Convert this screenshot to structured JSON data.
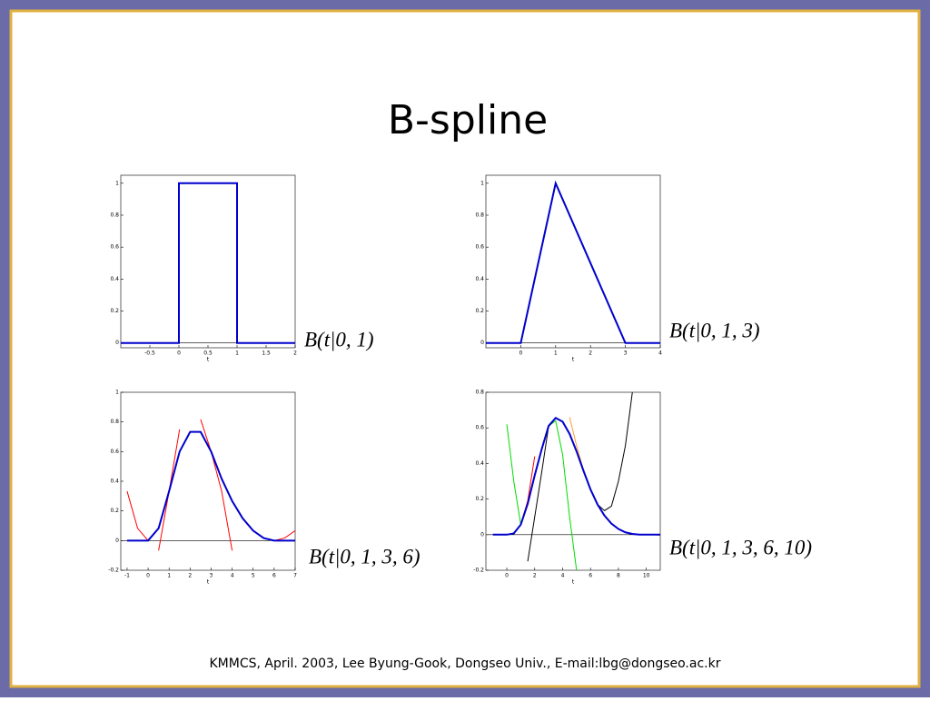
{
  "slide": {
    "title": "B-spline",
    "footer": "KMMCS, April. 2003, Lee  Byung-Gook, Dongseo Univ., E-mail:lbg@dongseo.ac.kr"
  },
  "chart_data": [
    {
      "type": "line",
      "annotation": "B(t|0, 1)",
      "x_label": "t",
      "x": [
        -1,
        0,
        0,
        1,
        1,
        2
      ],
      "series": [
        {
          "color": "#0000cc",
          "values": [
            0,
            0,
            1,
            1,
            0,
            0
          ]
        }
      ],
      "xlim": [
        -1,
        2
      ],
      "xticks": [
        -0.5,
        0,
        0.5,
        1,
        1.5,
        2
      ],
      "ylim": [
        -0.03,
        1.05
      ],
      "yticks": [
        0,
        0.2,
        0.4,
        0.6,
        0.8,
        1
      ]
    },
    {
      "type": "line",
      "annotation": "B(t|0, 1, 3)",
      "x_label": "t",
      "x": [
        -1,
        0,
        1,
        3,
        4
      ],
      "series": [
        {
          "color": "#0000cc",
          "values": [
            0,
            0,
            1,
            0,
            0
          ]
        }
      ],
      "xlim": [
        -1,
        4
      ],
      "xticks": [
        0,
        1,
        2,
        3,
        4
      ],
      "ylim": [
        -0.03,
        1.05
      ],
      "yticks": [
        0,
        0.2,
        0.4,
        0.6,
        0.8,
        1
      ]
    },
    {
      "type": "line",
      "annotation": "B(t|0, 1, 3, 6)",
      "x_label": "t",
      "x": [
        -1,
        -0.5,
        0,
        0.5,
        1,
        1.5,
        2,
        2.5,
        3,
        3.5,
        4,
        4.5,
        5,
        5.5,
        6,
        6.5,
        7
      ],
      "series": [
        {
          "color": "#ff0000",
          "values": [
            0.333,
            0.083,
            0,
            0.083,
            0.333,
            0.75,
            null,
            null,
            null,
            null,
            null,
            null,
            null,
            null,
            null,
            null,
            null
          ]
        },
        {
          "color": "#ff0000",
          "values": [
            null,
            null,
            null,
            -0.067,
            0.333,
            0.6,
            0.733,
            0.733,
            0.6,
            0.333,
            -0.067,
            null,
            null,
            null,
            null,
            null,
            null
          ]
        },
        {
          "color": "#ff0000",
          "values": [
            null,
            null,
            null,
            null,
            null,
            null,
            null,
            0.817,
            0.6,
            0.417,
            0.267,
            0.15,
            0.067,
            0.017,
            0,
            0.017,
            0.067
          ]
        },
        {
          "color": "#0000cc",
          "values": [
            0,
            0,
            0,
            0.083,
            0.333,
            0.6,
            0.733,
            0.733,
            0.6,
            0.417,
            0.267,
            0.15,
            0.067,
            0.017,
            0,
            0,
            0
          ]
        }
      ],
      "xlim": [
        -1.3,
        7
      ],
      "xticks": [
        -1,
        0,
        1,
        2,
        3,
        4,
        5,
        6,
        7
      ],
      "ylim": [
        -0.2,
        1
      ],
      "yticks": [
        -0.2,
        0,
        0.2,
        0.4,
        0.6,
        0.8,
        1
      ]
    },
    {
      "type": "line",
      "annotation": "B(t|0, 1, 3, 6, 10)",
      "x_label": "t",
      "x": [
        -1,
        -0.5,
        0,
        0.5,
        1,
        1.5,
        2,
        2.5,
        3,
        3.5,
        4,
        4.5,
        5,
        5.5,
        6,
        6.5,
        7,
        7.5,
        8,
        8.5,
        9,
        9.5,
        10,
        10.5,
        11
      ],
      "series": [
        {
          "color": "#00dd00",
          "values": [
            null,
            null,
            0.62,
            0.3,
            0.056,
            0.17,
            0.333,
            0.48,
            0.611,
            0.64,
            0.45,
            0.1,
            -0.2,
            null,
            null,
            null,
            null,
            null,
            null,
            null,
            null,
            null,
            null,
            null,
            null
          ]
        },
        {
          "color": "#000000",
          "values": [
            null,
            null,
            null,
            null,
            null,
            -0.15,
            0.1,
            0.35,
            0.611,
            0.656,
            0.635,
            0.566,
            0.468,
            0.358,
            0.254,
            0.17,
            0.135,
            0.16,
            0.3,
            0.5,
            0.8,
            null,
            null,
            null,
            null
          ]
        },
        {
          "color": "#ff0000",
          "values": [
            null,
            null,
            0,
            0.007,
            0.056,
            0.19,
            0.44,
            null,
            null,
            null,
            null,
            null,
            null,
            null,
            null,
            null,
            null,
            null,
            null,
            null,
            null,
            null,
            null,
            null,
            null
          ]
        },
        {
          "color": "#ff9933",
          "values": [
            null,
            null,
            null,
            null,
            null,
            null,
            null,
            null,
            null,
            null,
            null,
            0.66,
            0.5,
            0.362,
            0.254,
            0.17,
            0.107,
            0.062,
            0.032,
            0.013,
            0.004,
            0.0005,
            0,
            -0.0005,
            -0.004
          ]
        },
        {
          "color": "#0000cc",
          "values": [
            0,
            0,
            0,
            0.007,
            0.056,
            0.174,
            0.333,
            0.48,
            0.611,
            0.656,
            0.635,
            0.566,
            0.468,
            0.358,
            0.254,
            0.17,
            0.107,
            0.062,
            0.032,
            0.013,
            0.004,
            0.0005,
            0,
            0,
            0
          ]
        }
      ],
      "xlim": [
        -1.5,
        11
      ],
      "xticks": [
        0,
        2,
        4,
        6,
        8,
        10
      ],
      "ylim": [
        -0.2,
        0.8
      ],
      "yticks": [
        -0.2,
        0,
        0.2,
        0.4,
        0.6,
        0.8
      ]
    }
  ]
}
